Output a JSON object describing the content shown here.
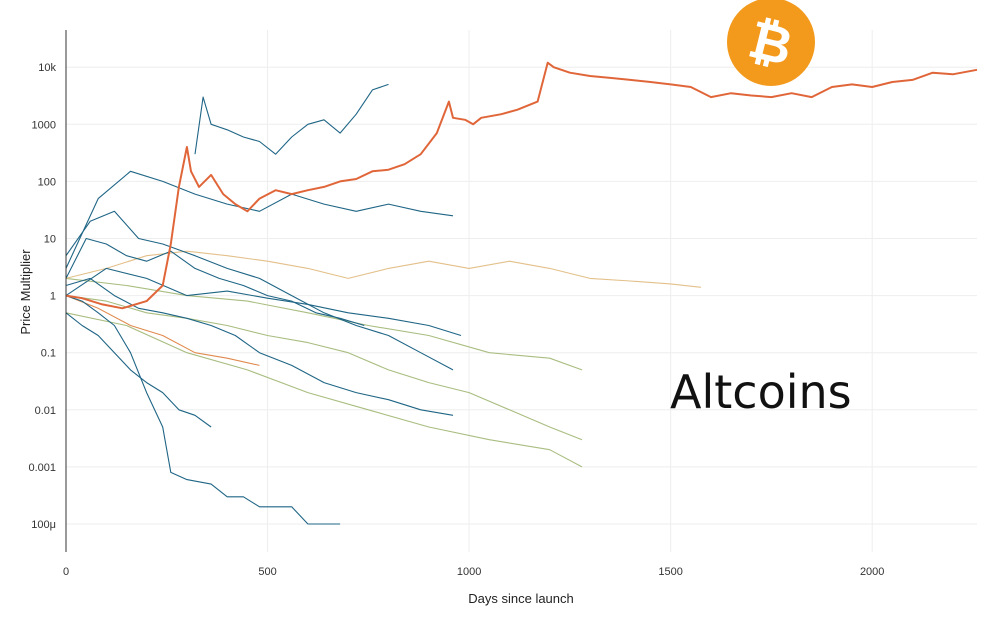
{
  "chart_data": {
    "type": "line",
    "title": "",
    "xlabel": "Days since launch",
    "ylabel": "Price Multiplier",
    "x_range": [
      0,
      2260
    ],
    "y_range": [
      5e-05,
      40000
    ],
    "y_scale": "log",
    "x_ticks": [
      0,
      500,
      1000,
      1500,
      2000
    ],
    "x_tick_labels": [
      "0",
      "500",
      "1000",
      "1500",
      "2000"
    ],
    "y_ticks": [
      0.0001,
      0.001,
      0.01,
      0.1,
      1,
      10,
      100,
      1000,
      10000
    ],
    "y_tick_labels": [
      "100μ",
      "0.001",
      "0.01",
      "0.1",
      "1",
      "10",
      "100",
      "1000",
      "10k"
    ],
    "grid": true,
    "annotations": [
      "Altcoins"
    ],
    "colors": {
      "bitcoin": "#e0663a",
      "altcoin_dark": "#1f6585",
      "altcoin_green": "#a9bd80",
      "altcoin_tan": "#e3c08a",
      "altcoin_orange": "#e08a4e",
      "logo_orange": "#f39a1d"
    },
    "icons": [
      "bitcoin-logo-icon"
    ],
    "series": [
      {
        "color": "bitcoin",
        "points": [
          [
            0,
            1
          ],
          [
            40,
            0.9
          ],
          [
            90,
            0.7
          ],
          [
            140,
            0.6
          ],
          [
            200,
            0.8
          ],
          [
            240,
            1.5
          ],
          [
            260,
            8
          ],
          [
            280,
            80
          ],
          [
            300,
            400
          ],
          [
            310,
            150
          ],
          [
            330,
            80
          ],
          [
            360,
            130
          ],
          [
            390,
            60
          ],
          [
            420,
            40
          ],
          [
            450,
            30
          ],
          [
            480,
            50
          ],
          [
            520,
            70
          ],
          [
            560,
            60
          ],
          [
            600,
            70
          ],
          [
            640,
            80
          ],
          [
            680,
            100
          ],
          [
            720,
            110
          ],
          [
            760,
            150
          ],
          [
            800,
            160
          ],
          [
            840,
            200
          ],
          [
            880,
            300
          ],
          [
            920,
            700
          ],
          [
            950,
            2500
          ],
          [
            960,
            1300
          ],
          [
            990,
            1200
          ],
          [
            1010,
            1000
          ],
          [
            1030,
            1300
          ],
          [
            1080,
            1500
          ],
          [
            1120,
            1800
          ],
          [
            1170,
            2500
          ],
          [
            1195,
            12000
          ],
          [
            1210,
            10000
          ],
          [
            1250,
            8000
          ],
          [
            1300,
            7000
          ],
          [
            1350,
            6500
          ],
          [
            1400,
            6000
          ],
          [
            1450,
            5500
          ],
          [
            1500,
            5000
          ],
          [
            1550,
            4500
          ],
          [
            1600,
            3000
          ],
          [
            1650,
            3500
          ],
          [
            1700,
            3200
          ],
          [
            1750,
            3000
          ],
          [
            1800,
            3500
          ],
          [
            1850,
            3000
          ],
          [
            1900,
            4500
          ],
          [
            1950,
            5000
          ],
          [
            2000,
            4500
          ],
          [
            2050,
            5500
          ],
          [
            2100,
            6000
          ],
          [
            2150,
            8000
          ],
          [
            2200,
            7500
          ],
          [
            2260,
            9000
          ]
        ]
      },
      {
        "color": "altcoin_tan",
        "points": [
          [
            0,
            2
          ],
          [
            100,
            3
          ],
          [
            200,
            5
          ],
          [
            300,
            6
          ],
          [
            400,
            5
          ],
          [
            500,
            4
          ],
          [
            600,
            3
          ],
          [
            700,
            2
          ],
          [
            800,
            3
          ],
          [
            900,
            4
          ],
          [
            1000,
            3
          ],
          [
            1100,
            4
          ],
          [
            1200,
            3
          ],
          [
            1300,
            2
          ],
          [
            1400,
            1.8
          ],
          [
            1500,
            1.6
          ],
          [
            1575,
            1.4
          ]
        ]
      },
      {
        "color": "altcoin_dark",
        "points": [
          [
            320,
            300
          ],
          [
            340,
            3000
          ],
          [
            360,
            1000
          ],
          [
            400,
            800
          ],
          [
            440,
            600
          ],
          [
            480,
            500
          ],
          [
            520,
            300
          ],
          [
            560,
            600
          ],
          [
            600,
            1000
          ],
          [
            640,
            1200
          ],
          [
            680,
            700
          ],
          [
            720,
            1500
          ],
          [
            760,
            4000
          ],
          [
            800,
            5000
          ]
        ]
      },
      {
        "color": "altcoin_dark",
        "points": [
          [
            0,
            1
          ],
          [
            40,
            0.8
          ],
          [
            80,
            0.5
          ],
          [
            120,
            0.3
          ],
          [
            160,
            0.1
          ],
          [
            200,
            0.02
          ],
          [
            240,
            0.005
          ],
          [
            260,
            0.0008
          ],
          [
            300,
            0.0006
          ],
          [
            360,
            0.0005
          ],
          [
            400,
            0.0003
          ],
          [
            440,
            0.0003
          ],
          [
            480,
            0.0002
          ],
          [
            520,
            0.0002
          ],
          [
            560,
            0.0002
          ],
          [
            600,
            0.0001
          ],
          [
            640,
            0.0001
          ],
          [
            680,
            0.0001
          ]
        ]
      },
      {
        "color": "altcoin_dark",
        "points": [
          [
            0,
            3
          ],
          [
            80,
            50
          ],
          [
            160,
            150
          ],
          [
            240,
            100
          ],
          [
            320,
            60
          ],
          [
            400,
            40
          ],
          [
            480,
            30
          ],
          [
            560,
            60
          ],
          [
            640,
            40
          ],
          [
            720,
            30
          ],
          [
            800,
            40
          ],
          [
            880,
            30
          ],
          [
            960,
            25
          ]
        ]
      },
      {
        "color": "altcoin_dark",
        "points": [
          [
            0,
            5
          ],
          [
            60,
            20
          ],
          [
            120,
            30
          ],
          [
            180,
            10
          ],
          [
            240,
            8
          ],
          [
            320,
            5
          ],
          [
            400,
            3
          ],
          [
            480,
            2
          ],
          [
            560,
            1
          ],
          [
            640,
            0.5
          ],
          [
            720,
            0.3
          ],
          [
            800,
            0.2
          ],
          [
            880,
            0.1
          ],
          [
            960,
            0.05
          ]
        ]
      },
      {
        "color": "altcoin_dark",
        "points": [
          [
            0,
            1.5
          ],
          [
            60,
            2
          ],
          [
            120,
            1
          ],
          [
            180,
            0.6
          ],
          [
            240,
            0.5
          ],
          [
            300,
            0.4
          ],
          [
            360,
            0.3
          ],
          [
            420,
            0.2
          ],
          [
            480,
            0.1
          ],
          [
            560,
            0.06
          ],
          [
            640,
            0.03
          ],
          [
            720,
            0.02
          ],
          [
            800,
            0.015
          ],
          [
            880,
            0.01
          ],
          [
            960,
            0.008
          ]
        ]
      },
      {
        "color": "altcoin_dark",
        "points": [
          [
            0,
            2
          ],
          [
            50,
            10
          ],
          [
            100,
            8
          ],
          [
            150,
            5
          ],
          [
            200,
            4
          ],
          [
            260,
            6
          ],
          [
            320,
            3
          ],
          [
            380,
            2
          ],
          [
            440,
            1.5
          ],
          [
            500,
            1
          ],
          [
            560,
            0.8
          ],
          [
            620,
            0.5
          ],
          [
            680,
            0.4
          ],
          [
            740,
            0.3
          ]
        ]
      },
      {
        "color": "altcoin_dark",
        "points": [
          [
            0,
            0.5
          ],
          [
            40,
            0.3
          ],
          [
            80,
            0.2
          ],
          [
            120,
            0.1
          ],
          [
            160,
            0.05
          ],
          [
            200,
            0.03
          ],
          [
            240,
            0.02
          ],
          [
            280,
            0.01
          ],
          [
            320,
            0.008
          ],
          [
            360,
            0.005
          ]
        ]
      },
      {
        "color": "altcoin_dark",
        "points": [
          [
            0,
            1
          ],
          [
            100,
            3
          ],
          [
            200,
            2
          ],
          [
            300,
            1
          ],
          [
            400,
            1.2
          ],
          [
            500,
            0.9
          ],
          [
            600,
            0.7
          ],
          [
            700,
            0.5
          ],
          [
            800,
            0.4
          ],
          [
            900,
            0.3
          ],
          [
            980,
            0.2
          ]
        ]
      },
      {
        "color": "altcoin_green",
        "points": [
          [
            0,
            1
          ],
          [
            100,
            0.8
          ],
          [
            200,
            0.5
          ],
          [
            300,
            0.4
          ],
          [
            400,
            0.3
          ],
          [
            500,
            0.2
          ],
          [
            600,
            0.15
          ],
          [
            700,
            0.1
          ],
          [
            800,
            0.05
          ],
          [
            900,
            0.03
          ],
          [
            1000,
            0.02
          ],
          [
            1100,
            0.01
          ],
          [
            1200,
            0.005
          ],
          [
            1280,
            0.003
          ]
        ]
      },
      {
        "color": "altcoin_green",
        "points": [
          [
            0,
            2
          ],
          [
            150,
            1.5
          ],
          [
            300,
            1
          ],
          [
            450,
            0.8
          ],
          [
            600,
            0.5
          ],
          [
            750,
            0.3
          ],
          [
            900,
            0.2
          ],
          [
            1050,
            0.1
          ],
          [
            1200,
            0.08
          ],
          [
            1280,
            0.05
          ]
        ]
      },
      {
        "color": "altcoin_green",
        "points": [
          [
            0,
            0.5
          ],
          [
            150,
            0.3
          ],
          [
            300,
            0.1
          ],
          [
            450,
            0.05
          ],
          [
            600,
            0.02
          ],
          [
            750,
            0.01
          ],
          [
            900,
            0.005
          ],
          [
            1050,
            0.003
          ],
          [
            1200,
            0.002
          ],
          [
            1280,
            0.001
          ]
        ]
      },
      {
        "color": "altcoin_orange",
        "points": [
          [
            0,
            1
          ],
          [
            80,
            0.6
          ],
          [
            160,
            0.3
          ],
          [
            240,
            0.2
          ],
          [
            320,
            0.1
          ],
          [
            400,
            0.08
          ],
          [
            480,
            0.06
          ]
        ]
      }
    ]
  }
}
